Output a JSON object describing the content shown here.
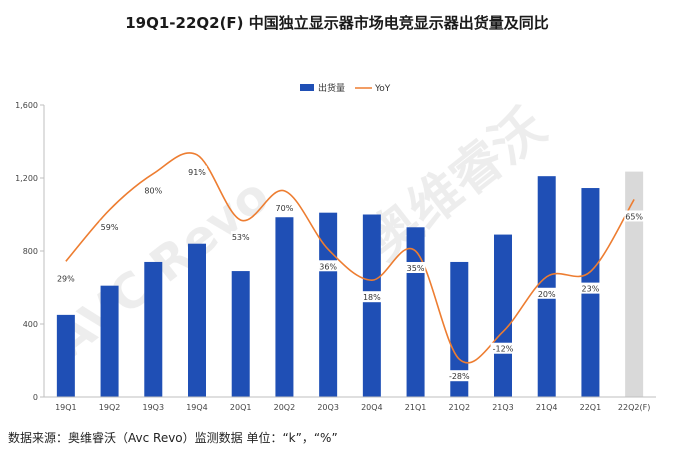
{
  "title": "19Q1-22Q2(F) 中国独立显示器市场电竞显示器出货量及同比",
  "source": "数据来源：奥维睿沃（Avc Revo）监测数据 单位：“k”，“%”",
  "watermark": {
    "brand": "AVC Revo",
    "cn": "奥维睿沃"
  },
  "colors": {
    "bar": "#1f4fb5",
    "forecast_bar": "#d9d9d9",
    "line": "#ed7d31",
    "axis": "#bfbfbf"
  },
  "chart_data": {
    "type": "bar",
    "title": "19Q1-22Q2(F) 中国独立显示器市场电竞显示器出货量及同比",
    "categories": [
      "19Q1",
      "19Q2",
      "19Q3",
      "19Q4",
      "20Q1",
      "20Q2",
      "20Q3",
      "20Q4",
      "21Q1",
      "21Q2",
      "21Q3",
      "21Q4",
      "22Q1",
      "22Q2(F)"
    ],
    "forecast_category": "22Q2(F)",
    "series": [
      {
        "name": "出货量",
        "type": "bar",
        "values": [
          450,
          610,
          740,
          840,
          690,
          985,
          1010,
          1000,
          930,
          740,
          890,
          1210,
          1145,
          1235
        ]
      },
      {
        "name": "YoY",
        "type": "line",
        "values": [
          29,
          59,
          80,
          91,
          53,
          70,
          36,
          18,
          35,
          -28,
          -12,
          20,
          23,
          65
        ],
        "labels": [
          "29%",
          "59%",
          "80%",
          "91%",
          "53%",
          "70%",
          "36%",
          "18%",
          "35%",
          "-28%",
          "-12%",
          "20%",
          "23%",
          "65%"
        ]
      }
    ],
    "yticks": [
      "0",
      "400",
      "800",
      "1,200",
      "1,600"
    ],
    "ytick_values": [
      0,
      400,
      800,
      1200,
      1600
    ],
    "ylim": [
      0,
      1600
    ],
    "yoy_range": [
      -50,
      120
    ],
    "legend": [
      "出货量",
      "YoY"
    ],
    "legend_position": "top-center",
    "xlabel": "",
    "ylabel": ""
  }
}
